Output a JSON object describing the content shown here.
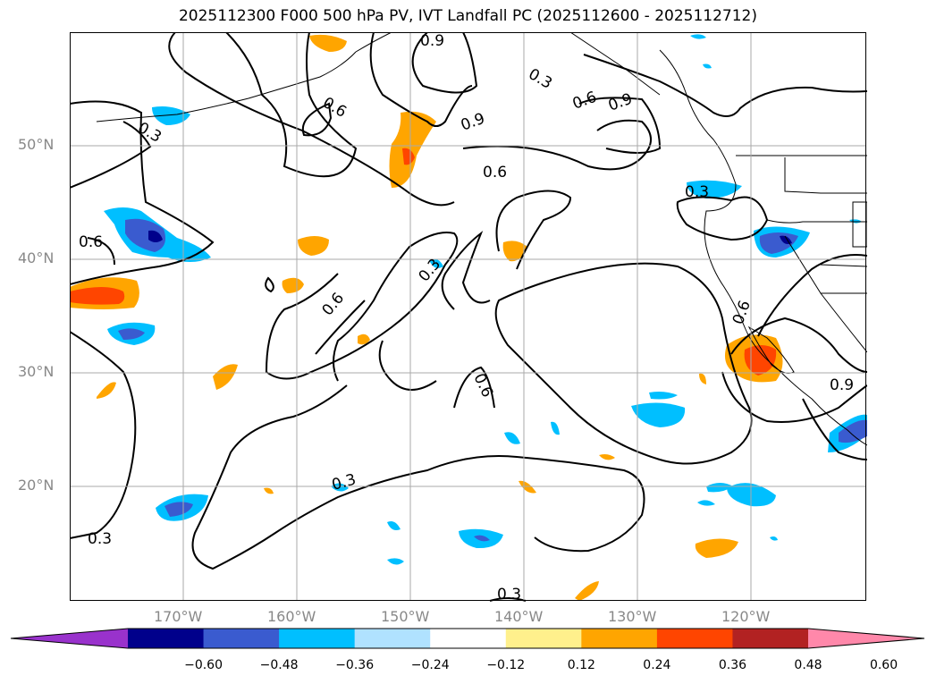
{
  "title": "2025112300 F000 500 hPa PV, IVT Landfall PC (2025112600 - 2025112712)",
  "lat_labels": [
    {
      "name": "lat-label-50n",
      "text": "50°N"
    },
    {
      "name": "lat-label-40n",
      "text": "40°N"
    },
    {
      "name": "lat-label-30n",
      "text": "30°N"
    },
    {
      "name": "lat-label-20n",
      "text": "20°N"
    }
  ],
  "lon_labels": [
    {
      "name": "lon-label-170w",
      "text": "170°W"
    },
    {
      "name": "lon-label-160w",
      "text": "160°W"
    },
    {
      "name": "lon-label-150w",
      "text": "150°W"
    },
    {
      "name": "lon-label-140w",
      "text": "140°W"
    },
    {
      "name": "lon-label-130w",
      "text": "130°W"
    },
    {
      "name": "lon-label-120w",
      "text": "120°W"
    }
  ],
  "contour_labels": [
    "0.3",
    "0.6",
    "0.9"
  ],
  "colorbar": {
    "ticks": [
      "−0.60",
      "−0.48",
      "−0.36",
      "−0.24",
      "−0.12",
      "0.12",
      "0.24",
      "0.36",
      "0.48",
      "0.60"
    ],
    "colors": [
      "#9932cc",
      "#00008b",
      "#3a5bcf",
      "#00bfff",
      "#b0e2ff",
      "#ffffff",
      "#fff08c",
      "#ffa500",
      "#ff4500",
      "#b22222",
      "#ff88aa"
    ]
  },
  "chart_data": {
    "type": "map",
    "title": "2025112300 F000 500 hPa PV, IVT Landfall PC (2025112600 - 2025112712)",
    "extent": {
      "lon": [
        -180,
        -110
      ],
      "lat": [
        10,
        60
      ]
    },
    "contour_levels": [
      0.3,
      0.6,
      0.9
    ],
    "fill_levels": [
      -0.6,
      -0.48,
      -0.36,
      -0.24,
      -0.12,
      0.12,
      0.24,
      0.36,
      0.48,
      0.6
    ]
  }
}
